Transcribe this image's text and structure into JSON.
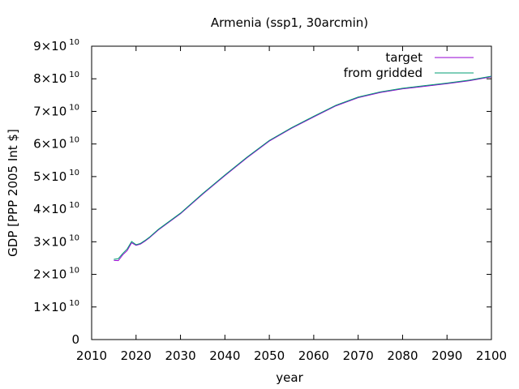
{
  "chart_data": {
    "type": "line",
    "title": "Armenia (ssp1, 30arcmin)",
    "xlabel": "year",
    "ylabel": "GDP [PPP 2005 Int $]",
    "xlim": [
      2010,
      2100
    ],
    "ylim": [
      0,
      90000000000
    ],
    "x_ticks": [
      "2010",
      "2020",
      "2030",
      "2040",
      "2050",
      "2060",
      "2070",
      "2080",
      "2090",
      "2100"
    ],
    "y_ticks": [
      {
        "value": 0,
        "mantissa": "0",
        "exponent": ""
      },
      {
        "value": 10000000000,
        "mantissa": "1×10",
        "exponent": "10"
      },
      {
        "value": 20000000000,
        "mantissa": "2×10",
        "exponent": "10"
      },
      {
        "value": 30000000000,
        "mantissa": "3×10",
        "exponent": "10"
      },
      {
        "value": 40000000000,
        "mantissa": "4×10",
        "exponent": "10"
      },
      {
        "value": 50000000000,
        "mantissa": "5×10",
        "exponent": "10"
      },
      {
        "value": 60000000000,
        "mantissa": "6×10",
        "exponent": "10"
      },
      {
        "value": 70000000000,
        "mantissa": "7×10",
        "exponent": "10"
      },
      {
        "value": 80000000000,
        "mantissa": "8×10",
        "exponent": "10"
      },
      {
        "value": 90000000000,
        "mantissa": "9×10",
        "exponent": "10"
      }
    ],
    "grid": false,
    "legend_position": "top-right",
    "series": [
      {
        "name": "target",
        "color": "#9400d3",
        "x": [
          2015,
          2016,
          2017,
          2018,
          2019,
          2020,
          2021,
          2022,
          2023,
          2025,
          2030,
          2035,
          2040,
          2045,
          2050,
          2055,
          2060,
          2065,
          2070,
          2075,
          2080,
          2085,
          2090,
          2095,
          2100
        ],
        "y": [
          24300000000,
          24200000000,
          26000000000,
          27300000000,
          29700000000,
          28900000000,
          29300000000,
          30200000000,
          31200000000,
          33600000000,
          38600000000,
          44600000000,
          50300000000,
          55800000000,
          60900000000,
          64800000000,
          68300000000,
          71700000000,
          74200000000,
          75800000000,
          76900000000,
          77700000000,
          78500000000,
          79400000000,
          80600000000
        ]
      },
      {
        "name": "from gridded",
        "color": "#009e73",
        "x": [
          2015,
          2016,
          2017,
          2018,
          2019,
          2020,
          2021,
          2022,
          2023,
          2025,
          2030,
          2035,
          2040,
          2045,
          2050,
          2055,
          2060,
          2065,
          2070,
          2075,
          2080,
          2085,
          2090,
          2095,
          2100
        ],
        "y": [
          24600000000,
          24800000000,
          26400000000,
          27800000000,
          30100000000,
          29100000000,
          29500000000,
          30400000000,
          31400000000,
          33800000000,
          38800000000,
          44800000000,
          50500000000,
          56000000000,
          61100000000,
          65000000000,
          68500000000,
          71900000000,
          74400000000,
          76000000000,
          77100000000,
          77900000000,
          78700000000,
          79600000000,
          80800000000
        ]
      }
    ]
  }
}
